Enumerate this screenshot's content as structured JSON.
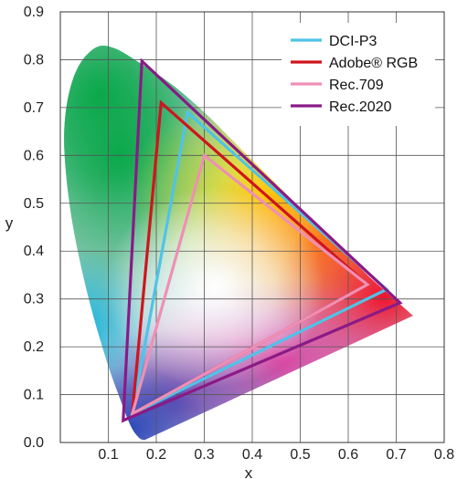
{
  "chart_data": {
    "type": "scatter",
    "title": "",
    "xlabel": "x",
    "ylabel": "y",
    "xlim": [
      0,
      0.8
    ],
    "ylim": [
      0,
      0.9
    ],
    "x_ticks": [
      "0.1",
      "0.2",
      "0.3",
      "0.4",
      "0.5",
      "0.6",
      "0.7",
      "0.8"
    ],
    "y_ticks": [
      "0.0",
      "0.1",
      "0.2",
      "0.3",
      "0.4",
      "0.5",
      "0.6",
      "0.7",
      "0.8",
      "0.9"
    ],
    "grid": true,
    "legend_position": "top-right",
    "spectral_locus": [
      [
        0.175,
        0.005
      ],
      [
        0.165,
        0.009
      ],
      [
        0.152,
        0.025
      ],
      [
        0.14,
        0.05
      ],
      [
        0.125,
        0.09
      ],
      [
        0.1,
        0.16
      ],
      [
        0.07,
        0.26
      ],
      [
        0.045,
        0.36
      ],
      [
        0.025,
        0.46
      ],
      [
        0.012,
        0.56
      ],
      [
        0.008,
        0.65
      ],
      [
        0.018,
        0.73
      ],
      [
        0.04,
        0.79
      ],
      [
        0.075,
        0.826
      ],
      [
        0.11,
        0.825
      ],
      [
        0.155,
        0.8
      ],
      [
        0.23,
        0.75
      ],
      [
        0.3,
        0.69
      ],
      [
        0.37,
        0.62
      ],
      [
        0.44,
        0.55
      ],
      [
        0.51,
        0.48
      ],
      [
        0.58,
        0.41
      ],
      [
        0.64,
        0.35
      ],
      [
        0.69,
        0.305
      ],
      [
        0.735,
        0.265
      ]
    ],
    "series": [
      {
        "name": "DCI-P3",
        "color": "#4fc3e8",
        "points": [
          [
            0.68,
            0.32
          ],
          [
            0.265,
            0.69
          ],
          [
            0.15,
            0.06
          ]
        ]
      },
      {
        "name": "Adobe® RGB",
        "color": "#d0141e",
        "points": [
          [
            0.64,
            0.33
          ],
          [
            0.21,
            0.71
          ],
          [
            0.15,
            0.06
          ]
        ]
      },
      {
        "name": "Rec.709",
        "color": "#ef8fb5",
        "points": [
          [
            0.64,
            0.33
          ],
          [
            0.3,
            0.6
          ],
          [
            0.15,
            0.06
          ]
        ]
      },
      {
        "name": "Rec.2020",
        "color": "#8a1a86",
        "points": [
          [
            0.708,
            0.292
          ],
          [
            0.17,
            0.797
          ],
          [
            0.131,
            0.046
          ]
        ]
      }
    ]
  }
}
